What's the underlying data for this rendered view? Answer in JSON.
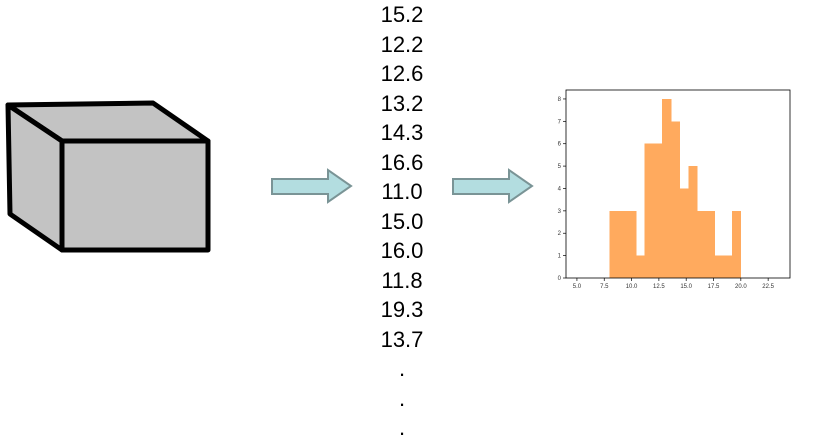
{
  "values_list": [
    "15.2",
    "12.2",
    "12.6",
    "13.2",
    "14.3",
    "16.6",
    "11.0",
    "15.0",
    "16.0",
    "11.8",
    "19.3",
    "13.7",
    ".",
    ".",
    "."
  ],
  "icons": {
    "cube": "cube-icon",
    "arrow": "right-arrow-icon"
  },
  "colors": {
    "cube_fill": "#c3c3c3",
    "cube_stroke": "#000000",
    "arrow_fill": "#b3dde0",
    "arrow_stroke": "#7a9496",
    "bar_color": "#ffaa5e"
  },
  "chart_data": {
    "type": "histogram",
    "title": "",
    "xlabel": "",
    "ylabel": "",
    "xlim": [
      4,
      24.5
    ],
    "ylim": [
      0,
      8.4
    ],
    "x_ticks": [
      5.0,
      7.5,
      10.0,
      12.5,
      15.0,
      17.5,
      20.0,
      22.5
    ],
    "x_tick_labels": [
      "5.0",
      "7.5",
      "10.0",
      "12.5",
      "15.0",
      "17.5",
      "20.0",
      "22.5"
    ],
    "y_ticks": [
      0,
      1,
      2,
      3,
      4,
      5,
      6,
      7,
      8
    ],
    "y_tick_labels": [
      "0",
      "1",
      "2",
      "3",
      "4",
      "5",
      "6",
      "7",
      "8"
    ],
    "bins": [
      {
        "x0": 8.0,
        "x1": 8.8,
        "count": 3
      },
      {
        "x0": 8.8,
        "x1": 9.6,
        "count": 3
      },
      {
        "x0": 9.6,
        "x1": 10.4,
        "count": 3
      },
      {
        "x0": 10.4,
        "x1": 11.2,
        "count": 1
      },
      {
        "x0": 11.2,
        "x1": 12.0,
        "count": 6
      },
      {
        "x0": 12.0,
        "x1": 12.8,
        "count": 6
      },
      {
        "x0": 12.8,
        "x1": 13.6,
        "count": 8
      },
      {
        "x0": 13.6,
        "x1": 14.4,
        "count": 7
      },
      {
        "x0": 14.4,
        "x1": 15.2,
        "count": 4
      },
      {
        "x0": 15.2,
        "x1": 16.0,
        "count": 5
      },
      {
        "x0": 16.0,
        "x1": 16.8,
        "count": 3
      },
      {
        "x0": 16.8,
        "x1": 17.6,
        "count": 3
      },
      {
        "x0": 17.6,
        "x1": 18.4,
        "count": 1
      },
      {
        "x0": 18.4,
        "x1": 19.2,
        "count": 1
      },
      {
        "x0": 19.2,
        "x1": 20.0,
        "count": 3
      }
    ],
    "grid": false,
    "legend": "none"
  }
}
